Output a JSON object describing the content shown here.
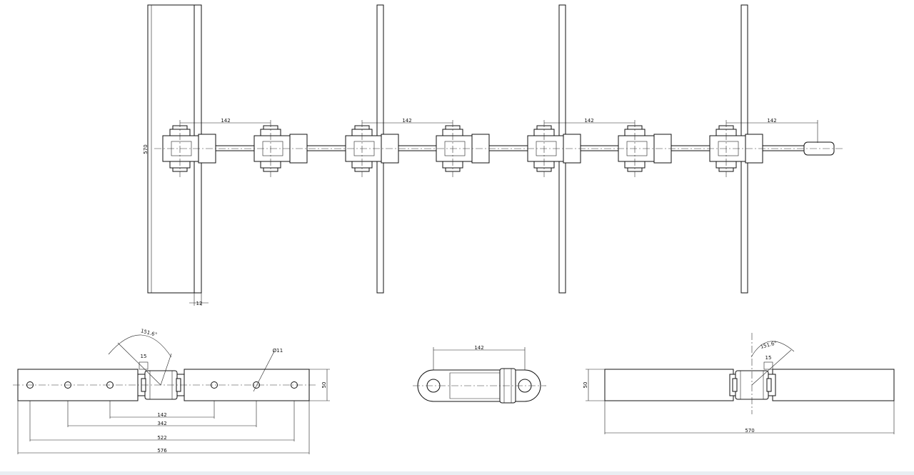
{
  "top_view": {
    "pitch_label": "142",
    "height_label": "570",
    "thickness_label": "12"
  },
  "side_view_left": {
    "angle_label": "151.6°",
    "gap_label": "15",
    "hole_label": "Ø11",
    "pitch_label": "142",
    "span_342_label": "342",
    "span_522_label": "522",
    "overall_label": "576",
    "width_label": "50"
  },
  "link_view": {
    "pitch_label": "142"
  },
  "side_view_right": {
    "angle_label": "151.6°",
    "gap_label": "15",
    "width_label": "50",
    "overall_label": "570"
  }
}
